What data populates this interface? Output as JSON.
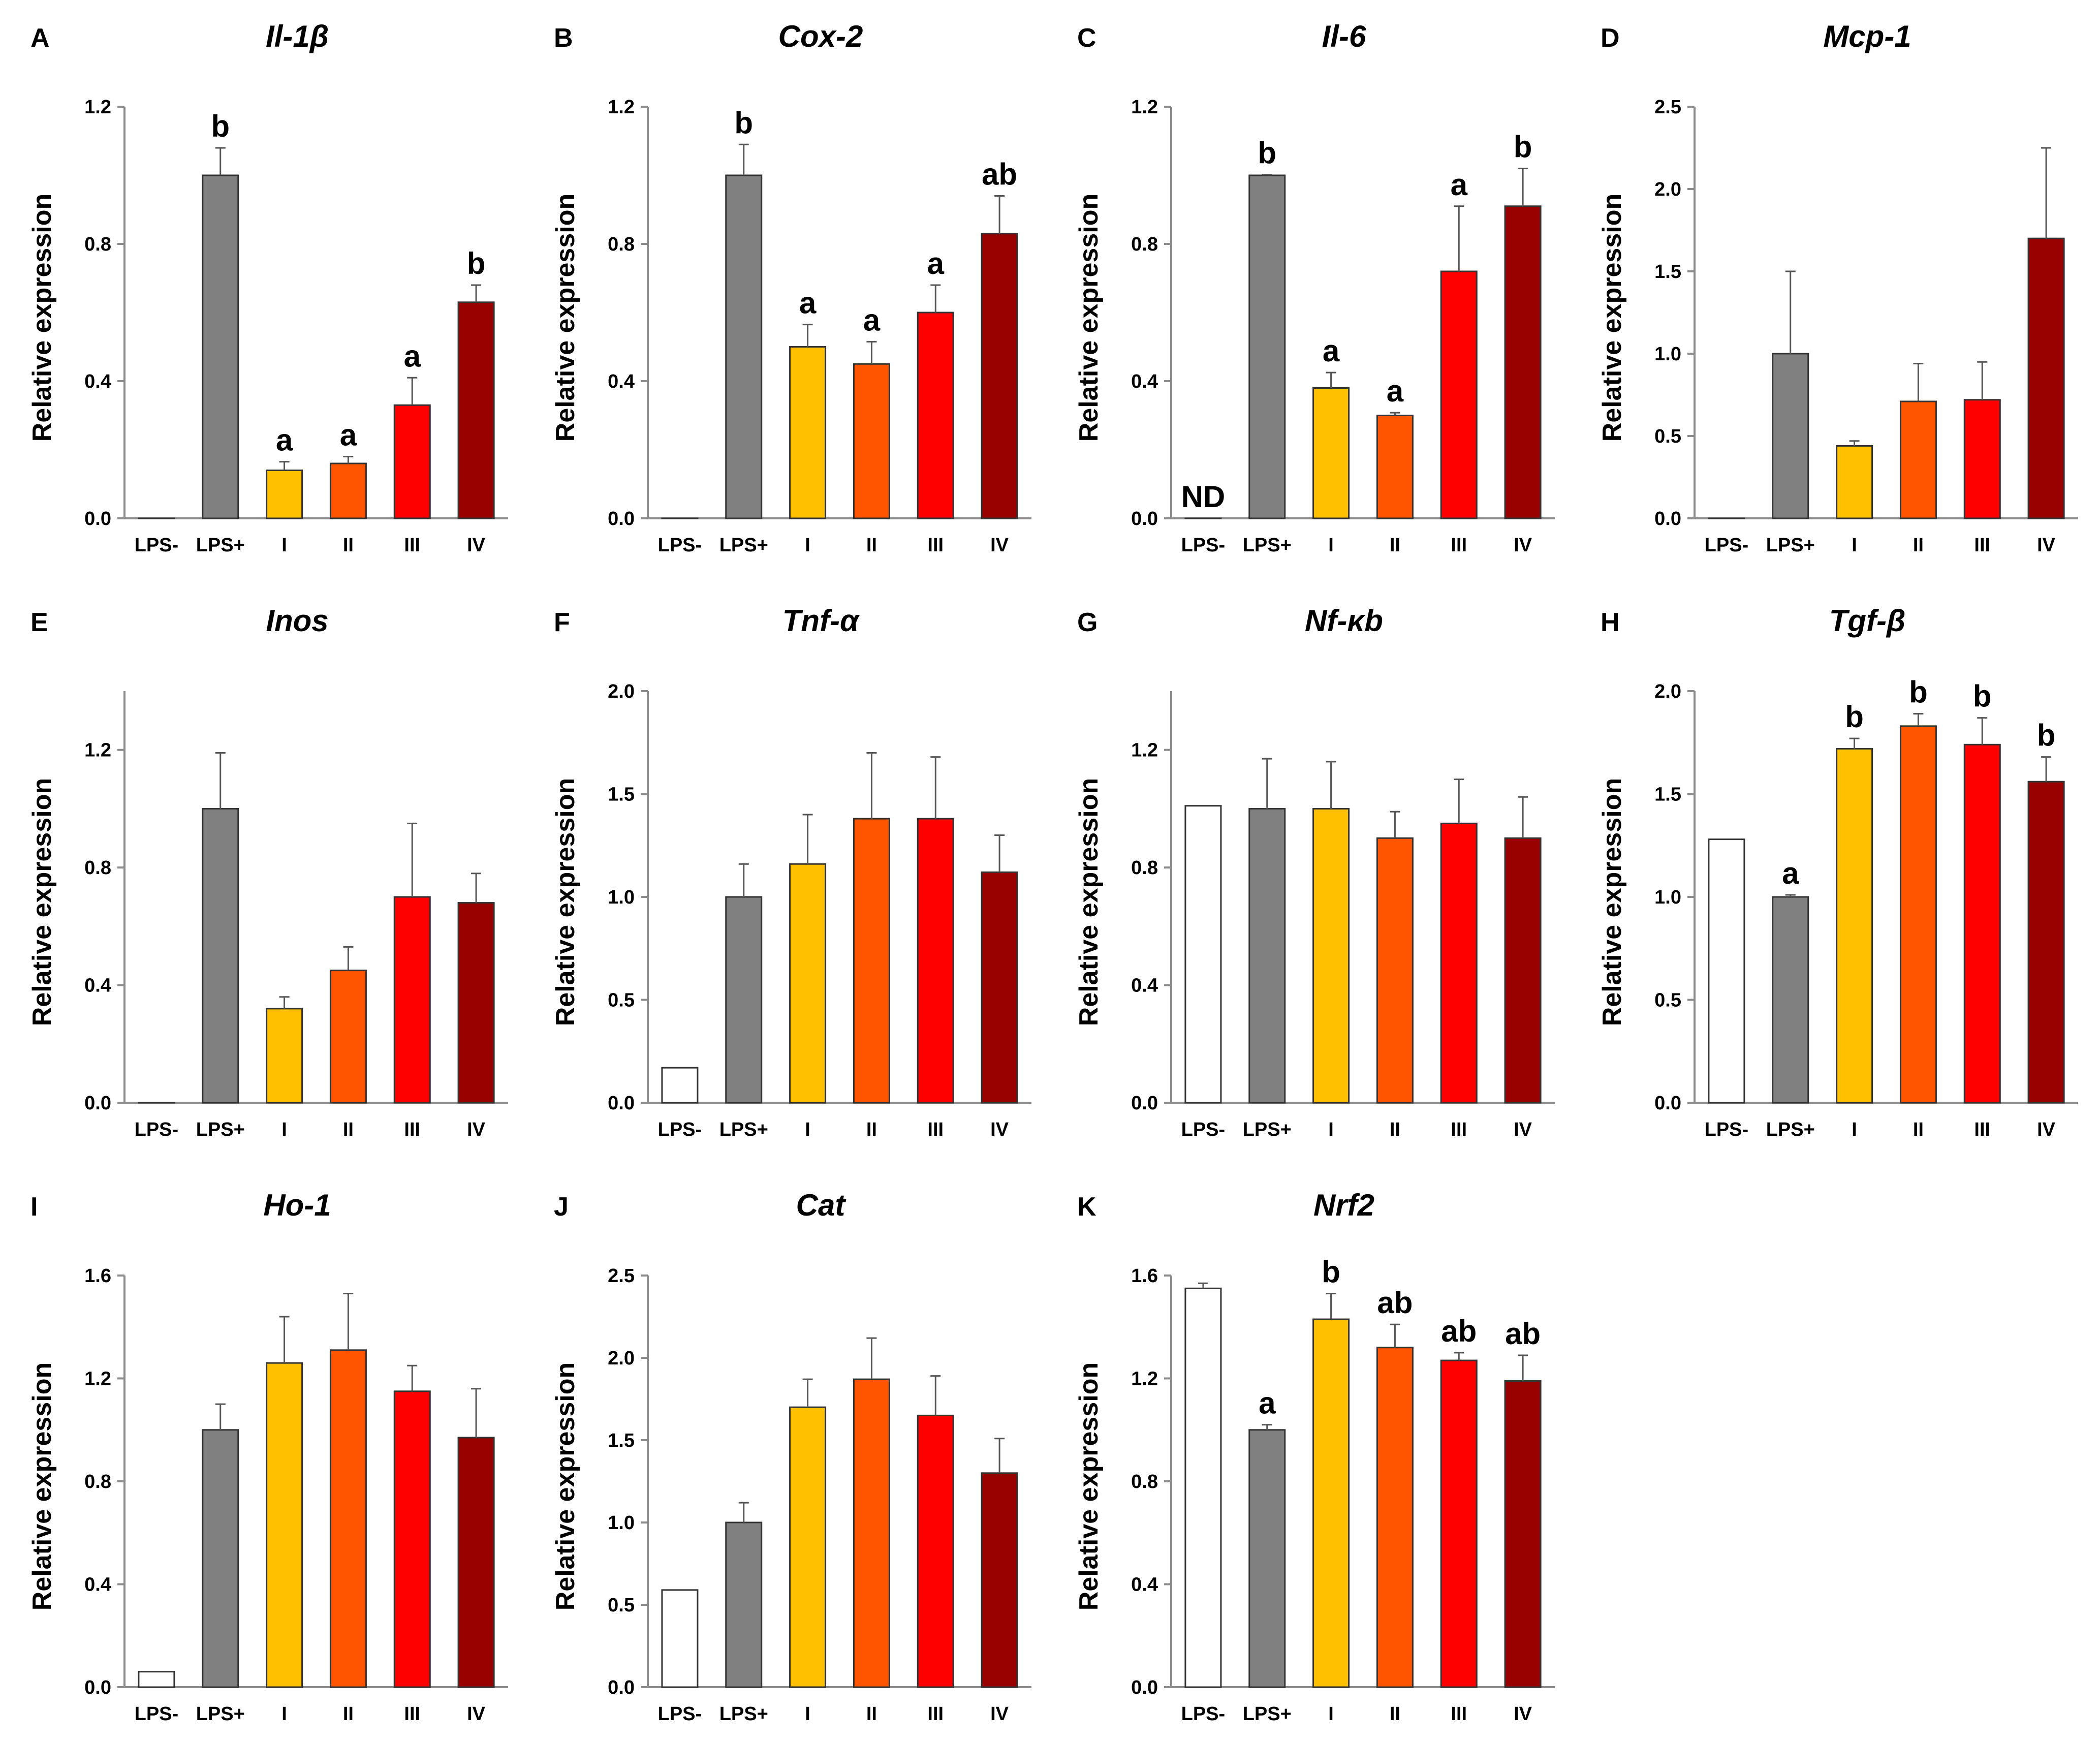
{
  "figure": {
    "categories": [
      "LPS-",
      "LPS+",
      "I",
      "II",
      "III",
      "IV"
    ],
    "colors": [
      "#ffffff",
      "#808080",
      "#ffc000",
      "#ff5500",
      "#ff0000",
      "#990000"
    ]
  },
  "chart_data": [
    {
      "panel": "A",
      "title": "Il-1β",
      "type": "bar",
      "ylabel": "Relative expression",
      "ylim": [
        0,
        1.2
      ],
      "yticks": [
        "0.0",
        "0.4",
        "0.8",
        "1.2"
      ],
      "values": [
        0,
        1.0,
        0.14,
        0.16,
        0.33,
        0.63
      ],
      "errors": [
        0,
        0.08,
        0.025,
        0.02,
        0.08,
        0.05
      ],
      "labels": [
        "",
        "b",
        "a",
        "a",
        "a",
        "b"
      ]
    },
    {
      "panel": "B",
      "title": "Cox-2",
      "type": "bar",
      "ylabel": "Relative expression",
      "ylim": [
        0,
        1.2
      ],
      "yticks": [
        "0.0",
        "0.4",
        "0.8",
        "1.2"
      ],
      "values": [
        0,
        1.0,
        0.5,
        0.45,
        0.6,
        0.83
      ],
      "errors": [
        0,
        0.09,
        0.065,
        0.065,
        0.08,
        0.11
      ],
      "labels": [
        "",
        "b",
        "a",
        "a",
        "a",
        "ab"
      ]
    },
    {
      "panel": "C",
      "title": "Il-6",
      "type": "bar",
      "ylabel": "Relative expression",
      "ylim": [
        0,
        1.2
      ],
      "yticks": [
        "0.0",
        "0.4",
        "0.8",
        "1.2"
      ],
      "values": [
        0,
        1.0,
        0.38,
        0.3,
        0.72,
        0.91
      ],
      "errors": [
        0,
        0.002,
        0.045,
        0.008,
        0.19,
        0.11
      ],
      "labels": [
        "ND",
        "b",
        "a",
        "a",
        "a",
        "b"
      ]
    },
    {
      "panel": "D",
      "title": "Mcp-1",
      "type": "bar",
      "ylabel": "Relative expression",
      "ylim": [
        0,
        2.5
      ],
      "yticks": [
        "0.0",
        "0.5",
        "1.0",
        "1.5",
        "2.0",
        "2.5"
      ],
      "values": [
        0,
        1.0,
        0.44,
        0.71,
        0.72,
        1.7
      ],
      "errors": [
        0,
        0.5,
        0.03,
        0.23,
        0.23,
        0.55
      ],
      "labels": [
        "",
        "",
        "",
        "",
        "",
        ""
      ]
    },
    {
      "panel": "E",
      "title": "Inos",
      "type": "bar",
      "ylabel": "Relative expression",
      "ylim": [
        0,
        1.4
      ],
      "yticks": [
        "0.0",
        "0.4",
        "0.8",
        "1.2"
      ],
      "values": [
        0,
        1.0,
        0.32,
        0.45,
        0.7,
        0.68
      ],
      "errors": [
        0,
        0.19,
        0.04,
        0.08,
        0.25,
        0.1
      ],
      "labels": [
        "",
        "",
        "",
        "",
        "",
        ""
      ]
    },
    {
      "panel": "F",
      "title": "Tnf-α",
      "type": "bar",
      "ylabel": "Relative expression",
      "ylim": [
        0,
        2.0
      ],
      "yticks": [
        "0.0",
        "0.5",
        "1.0",
        "1.5",
        "2.0"
      ],
      "values": [
        0.17,
        1.0,
        1.16,
        1.38,
        1.38,
        1.12
      ],
      "errors": [
        0,
        0.16,
        0.24,
        0.32,
        0.3,
        0.18
      ],
      "labels": [
        "",
        "",
        "",
        "",
        "",
        ""
      ]
    },
    {
      "panel": "G",
      "title": "Nf-κb",
      "type": "bar",
      "ylabel": "Relative expression",
      "ylim": [
        0,
        1.4
      ],
      "yticks": [
        "0.0",
        "0.4",
        "0.8",
        "1.2"
      ],
      "values": [
        1.01,
        1.0,
        1.0,
        0.9,
        0.95,
        0.9
      ],
      "errors": [
        0,
        0.17,
        0.16,
        0.09,
        0.15,
        0.14
      ],
      "labels": [
        "",
        "",
        "",
        "",
        "",
        ""
      ]
    },
    {
      "panel": "H",
      "title": "Tgf-β",
      "type": "bar",
      "ylabel": "Relative expression",
      "ylim": [
        0,
        2.0
      ],
      "yticks": [
        "0.0",
        "0.5",
        "1.0",
        "1.5",
        "2.0"
      ],
      "values": [
        1.28,
        1.0,
        1.72,
        1.83,
        1.74,
        1.56
      ],
      "errors": [
        0,
        0.01,
        0.05,
        0.06,
        0.13,
        0.12
      ],
      "labels": [
        "",
        "a",
        "b",
        "b",
        "b",
        "b"
      ]
    },
    {
      "panel": "I",
      "title": "Ho-1",
      "type": "bar",
      "ylabel": "Relative expression",
      "ylim": [
        0,
        1.6
      ],
      "yticks": [
        "0.0",
        "0.4",
        "0.8",
        "1.2",
        "1.6"
      ],
      "values": [
        0.06,
        1.0,
        1.26,
        1.31,
        1.15,
        0.97
      ],
      "errors": [
        0,
        0.1,
        0.18,
        0.22,
        0.1,
        0.19
      ],
      "labels": [
        "",
        "",
        "",
        "",
        "",
        ""
      ]
    },
    {
      "panel": "J",
      "title": "Cat",
      "type": "bar",
      "ylabel": "Relative expression",
      "ylim": [
        0,
        2.5
      ],
      "yticks": [
        "0.0",
        "0.5",
        "1.0",
        "1.5",
        "2.0",
        "2.5"
      ],
      "values": [
        0.59,
        1.0,
        1.7,
        1.87,
        1.65,
        1.3
      ],
      "errors": [
        0,
        0.12,
        0.17,
        0.25,
        0.24,
        0.21
      ],
      "labels": [
        "",
        "",
        "",
        "",
        "",
        ""
      ]
    },
    {
      "panel": "K",
      "title": "Nrf2",
      "type": "bar",
      "ylabel": "Relative expression",
      "ylim": [
        0,
        1.6
      ],
      "yticks": [
        "0.0",
        "0.4",
        "0.8",
        "1.2",
        "1.6"
      ],
      "values": [
        1.55,
        1.0,
        1.43,
        1.32,
        1.27,
        1.19
      ],
      "errors": [
        0.02,
        0.02,
        0.1,
        0.09,
        0.03,
        0.1
      ],
      "labels": [
        "",
        "a",
        "b",
        "ab",
        "ab",
        "ab"
      ]
    }
  ]
}
